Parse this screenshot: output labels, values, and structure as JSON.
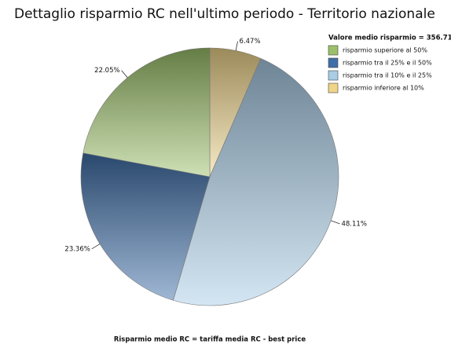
{
  "chart_data": {
    "type": "pie",
    "title": "Dettaglio risparmio RC nell'ultimo periodo - Territorio nazionale",
    "legend_title": "Valore medio risparmio = 356.71",
    "categories": [
      "risparmio superiore al 50%",
      "risparmio tra il 25% e il 50%",
      "risparmio tra il 10% e il 25%",
      "risparmio inferiore al 10%"
    ],
    "values": [
      22.05,
      23.36,
      48.11,
      6.47
    ],
    "value_labels": [
      "22.05%",
      "23.36%",
      "48.11%",
      "6.47%"
    ],
    "colors": [
      "#9cc06a",
      "#3f6fa8",
      "#a9cde6",
      "#efd48a"
    ],
    "legend": "top-right",
    "footer": "Risparmio medio RC = tariffa media RC - best price"
  }
}
